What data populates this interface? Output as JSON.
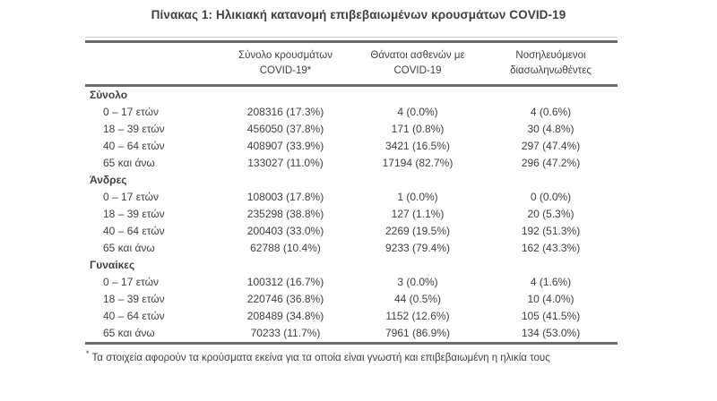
{
  "title": "Πίνακας 1: Ηλικιακή κατανομή επιβεβαιωμένων κρουσμάτων COVID-19",
  "table": {
    "columns": [
      {
        "line1": "Σύνολο κρουσμάτων",
        "line2": "COVID-19*"
      },
      {
        "line1": "Θάνατοι ασθενών με",
        "line2": "COVID-19"
      },
      {
        "line1": "Νοσηλευόμενοι",
        "line2": "διασωληνωθέντες"
      }
    ],
    "sections": [
      {
        "header": "Σύνολο",
        "rows": [
          {
            "label": "0 – 17 ετών",
            "values": [
              "208316 (17.3%)",
              "4 (0.0%)",
              "4 (0.6%)"
            ]
          },
          {
            "label": "18 – 39 ετών",
            "values": [
              "456050 (37.8%)",
              "171 (0.8%)",
              "30 (4.8%)"
            ]
          },
          {
            "label": "40 – 64 ετών",
            "values": [
              "408907 (33.9%)",
              "3421 (16.5%)",
              "297 (47.4%)"
            ]
          },
          {
            "label": "65 και άνω",
            "values": [
              "133027 (11.0%)",
              "17194 (82.7%)",
              "296 (47.2%)"
            ]
          }
        ]
      },
      {
        "header": "Άνδρες",
        "rows": [
          {
            "label": "0 – 17 ετών",
            "values": [
              "108003 (17.8%)",
              "1 (0.0%)",
              "0 (0.0%)"
            ]
          },
          {
            "label": "18 – 39 ετών",
            "values": [
              "235298 (38.8%)",
              "127 (1.1%)",
              "20 (5.3%)"
            ]
          },
          {
            "label": "40 – 64 ετών",
            "values": [
              "200403 (33.0%)",
              "2269 (19.5%)",
              "192 (51.3%)"
            ]
          },
          {
            "label": "65 και άνω",
            "values": [
              "62788 (10.4%)",
              "9233 (79.4%)",
              "162 (43.3%)"
            ]
          }
        ]
      },
      {
        "header": "Γυναίκες",
        "rows": [
          {
            "label": "0 – 17 ετών",
            "values": [
              "100312 (16.7%)",
              "3 (0.0%)",
              "4 (1.6%)"
            ]
          },
          {
            "label": "18 – 39 ετών",
            "values": [
              "220746 (36.8%)",
              "44 (0.5%)",
              "10 (4.0%)"
            ]
          },
          {
            "label": "40 – 64 ετών",
            "values": [
              "208489 (34.8%)",
              "1152 (12.6%)",
              "105 (41.5%)"
            ]
          },
          {
            "label": "65 και άνω",
            "values": [
              "70233 (11.7%)",
              "7961 (86.9%)",
              "134 (53.0%)"
            ]
          }
        ]
      }
    ],
    "footnote": {
      "marker": "*",
      "text": "Τα στοιχεία αφορούν τα κρούσματα εκείνα για τα οποία είναι γνωστή και επιβεβαιωμένη η ηλικία τους"
    }
  },
  "colors": {
    "text": "#414042",
    "border": "#6a6b6d",
    "background": "#ffffff"
  }
}
